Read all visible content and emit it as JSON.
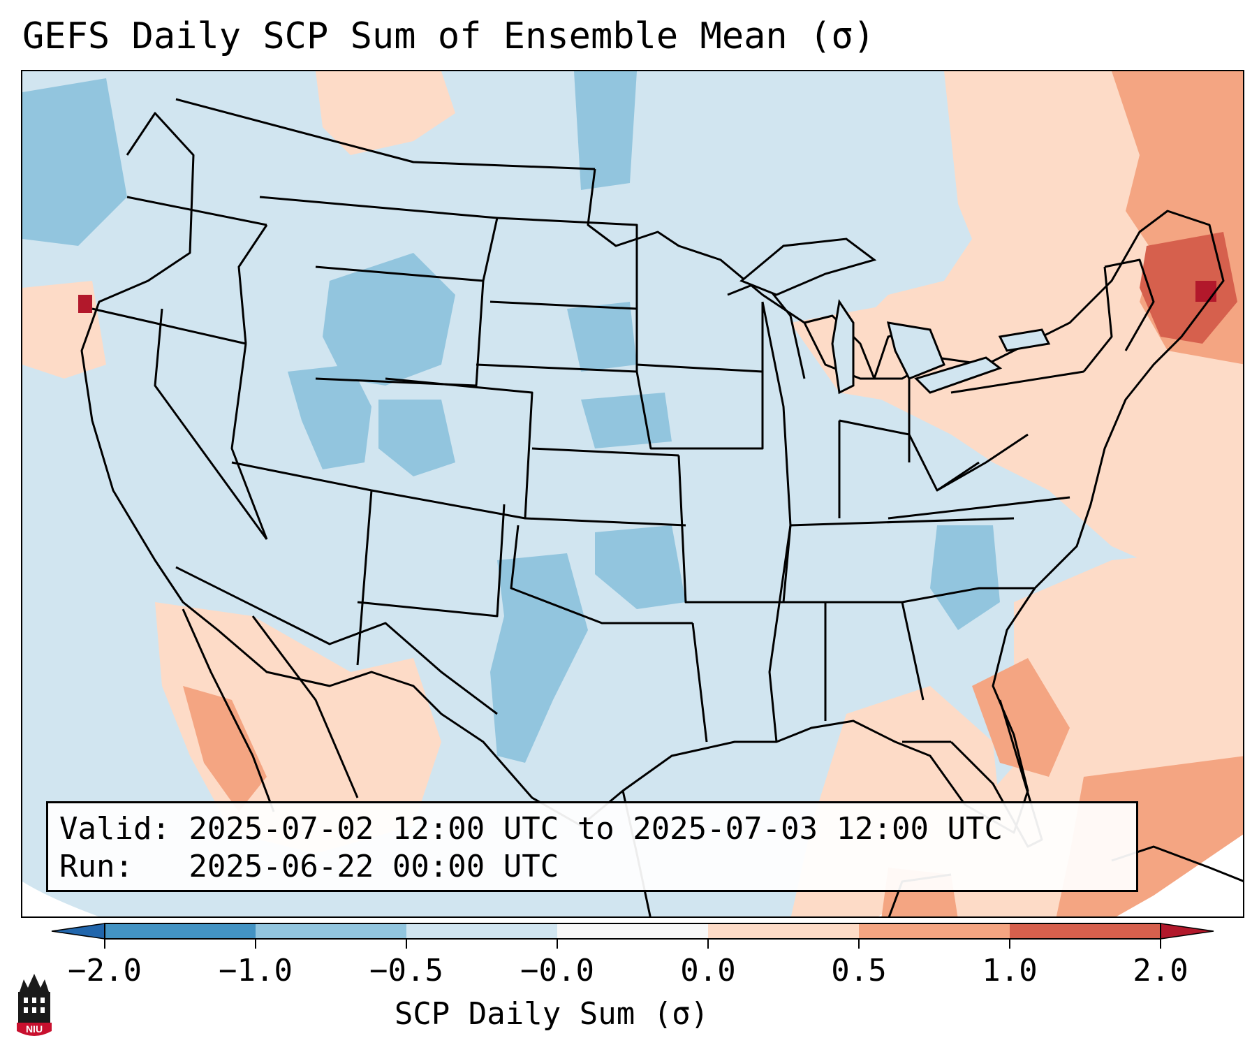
{
  "title": "GEFS Daily SCP Sum of Ensemble Mean (σ)",
  "map": {
    "region": "Contiguous United States",
    "projection": "Lambert Conformal"
  },
  "info_box": {
    "valid_line": "Valid: 2025-07-02 12:00 UTC to 2025-07-03 12:00 UTC",
    "run_line": "Run:   2025-06-22 00:00 UTC"
  },
  "colorbar": {
    "label": "SCP Daily Sum (σ)",
    "ticks": [
      "−2.0",
      "−1.0",
      "−0.5",
      "−0.0",
      "0.0",
      "0.5",
      "1.0",
      "2.0"
    ],
    "colors": [
      "#2166ac",
      "#4393c3",
      "#92c5de",
      "#d1e5f0",
      "#f7f7f7",
      "#fddbc7",
      "#f4a582",
      "#d6604d",
      "#b2182b"
    ],
    "extend": "both"
  },
  "logo": {
    "text": "NIU",
    "icon": "niu-logo-icon"
  }
}
